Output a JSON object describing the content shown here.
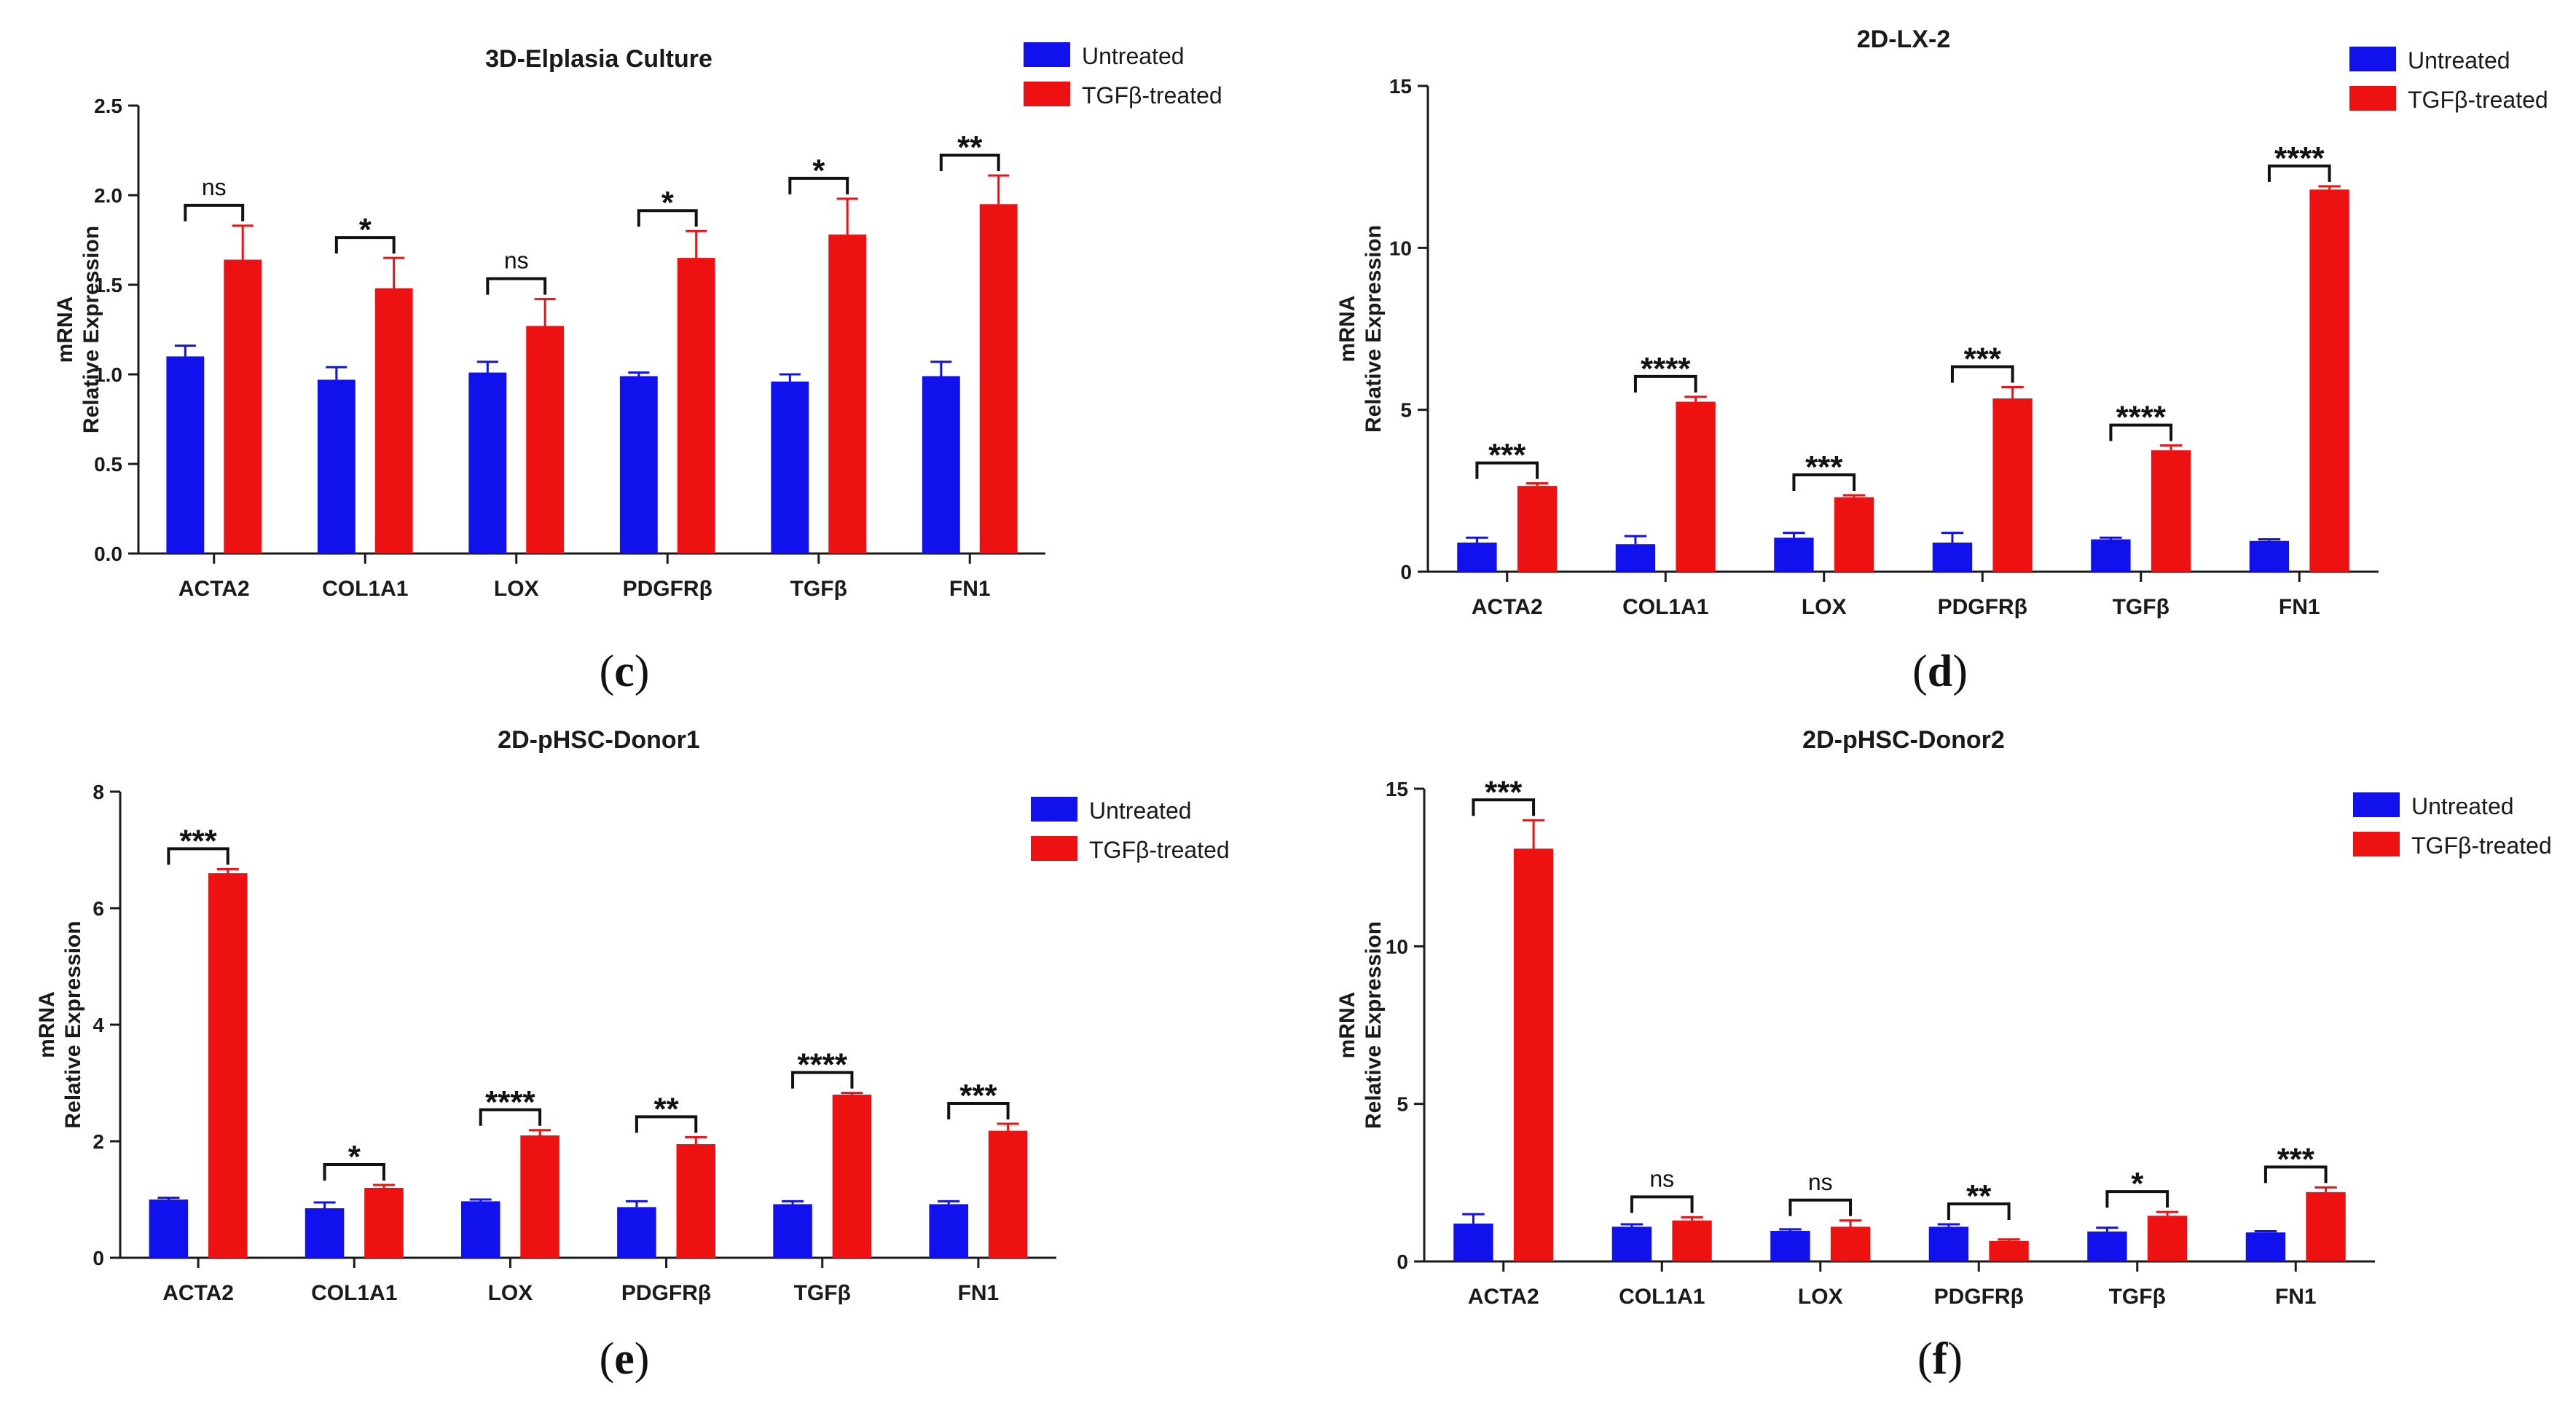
{
  "colors": {
    "untreated": "#1111ee",
    "treated": "#ee1111",
    "axis": "#1a1a1a"
  },
  "chart_data": [
    {
      "type": "bar",
      "panel": "c",
      "title": "3D-Elplasia Culture",
      "ylabel_lines": [
        "mRNA",
        "Relative Expression"
      ],
      "ylim": [
        0,
        2.5
      ],
      "yticks": [
        0.0,
        0.5,
        1.0,
        1.5,
        2.0,
        2.5
      ],
      "ytick_labels": [
        "0.0",
        "0.5",
        "1.0",
        "1.5",
        "2.0",
        "2.5"
      ],
      "categories": [
        "ACTA2",
        "COL1A1",
        "LOX",
        "PDGFRβ",
        "TGFβ",
        "FN1"
      ],
      "series": [
        {
          "name": "Untreated",
          "values": [
            1.1,
            0.97,
            1.01,
            0.99,
            0.96,
            0.99
          ],
          "errors": [
            0.06,
            0.07,
            0.06,
            0.02,
            0.04,
            0.08
          ]
        },
        {
          "name": "TGFβ-treated",
          "values": [
            1.64,
            1.48,
            1.27,
            1.65,
            1.78,
            1.95
          ],
          "errors": [
            0.19,
            0.17,
            0.15,
            0.15,
            0.2,
            0.16
          ]
        }
      ],
      "significance": [
        "ns",
        "*",
        "ns",
        "*",
        "*",
        "**"
      ],
      "legend": [
        "Untreated",
        "TGFβ-treated"
      ]
    },
    {
      "type": "bar",
      "panel": "d",
      "title": "2D-LX-2",
      "ylabel_lines": [
        "mRNA",
        "Relative Expression"
      ],
      "ylim": [
        0,
        15
      ],
      "yticks": [
        0,
        5,
        10,
        15
      ],
      "ytick_labels": [
        "0",
        "5",
        "10",
        "15"
      ],
      "categories": [
        "ACTA2",
        "COL1A1",
        "LOX",
        "PDGFRβ",
        "TGFβ",
        "FN1"
      ],
      "series": [
        {
          "name": "Untreated",
          "values": [
            0.9,
            0.85,
            1.05,
            0.9,
            1.0,
            0.95
          ],
          "errors": [
            0.15,
            0.25,
            0.15,
            0.3,
            0.05,
            0.05
          ]
        },
        {
          "name": "TGFβ-treated",
          "values": [
            2.65,
            5.25,
            2.3,
            5.35,
            3.75,
            11.8
          ],
          "errors": [
            0.08,
            0.15,
            0.06,
            0.35,
            0.15,
            0.1
          ]
        }
      ],
      "significance": [
        "***",
        "****",
        "***",
        "***",
        "****",
        "****"
      ],
      "legend": [
        "Untreated",
        "TGFβ-treated"
      ]
    },
    {
      "type": "bar",
      "panel": "e",
      "title": "2D-pHSC-Donor1",
      "ylabel_lines": [
        "mRNA",
        "Relative Expression"
      ],
      "ylim": [
        0,
        8
      ],
      "yticks": [
        0,
        2,
        4,
        6,
        8
      ],
      "ytick_labels": [
        "0",
        "2",
        "4",
        "6",
        "8"
      ],
      "categories": [
        "ACTA2",
        "COL1A1",
        "LOX",
        "PDGFRβ",
        "TGFβ",
        "FN1"
      ],
      "series": [
        {
          "name": "Untreated",
          "values": [
            1.0,
            0.85,
            0.97,
            0.87,
            0.92,
            0.92
          ],
          "errors": [
            0.03,
            0.1,
            0.03,
            0.1,
            0.05,
            0.05
          ]
        },
        {
          "name": "TGFβ-treated",
          "values": [
            6.6,
            1.2,
            2.1,
            1.95,
            2.8,
            2.18
          ],
          "errors": [
            0.07,
            0.05,
            0.09,
            0.12,
            0.03,
            0.12
          ]
        }
      ],
      "significance": [
        "***",
        "*",
        "****",
        "**",
        "****",
        "***"
      ],
      "legend": [
        "Untreated",
        "TGFβ-treated"
      ]
    },
    {
      "type": "bar",
      "panel": "f",
      "title": "2D-pHSC-Donor2",
      "ylabel_lines": [
        "mRNA",
        "Relative Expression"
      ],
      "ylim": [
        0,
        15
      ],
      "yticks": [
        0,
        5,
        10,
        15
      ],
      "ytick_labels": [
        "0",
        "5",
        "10",
        "15"
      ],
      "categories": [
        "ACTA2",
        "COL1A1",
        "LOX",
        "PDGFRβ",
        "TGFβ",
        "FN1"
      ],
      "series": [
        {
          "name": "Untreated",
          "values": [
            1.2,
            1.1,
            0.97,
            1.1,
            0.95,
            0.92
          ],
          "errors": [
            0.3,
            0.08,
            0.05,
            0.08,
            0.12,
            0.04
          ]
        },
        {
          "name": "TGFβ-treated",
          "values": [
            13.1,
            1.3,
            1.1,
            0.65,
            1.45,
            2.2
          ],
          "errors": [
            0.9,
            0.1,
            0.2,
            0.05,
            0.12,
            0.15
          ]
        }
      ],
      "significance": [
        "***",
        "ns",
        "ns",
        "**",
        "*",
        "***"
      ],
      "legend": [
        "Untreated",
        "TGFβ-treated"
      ]
    }
  ]
}
